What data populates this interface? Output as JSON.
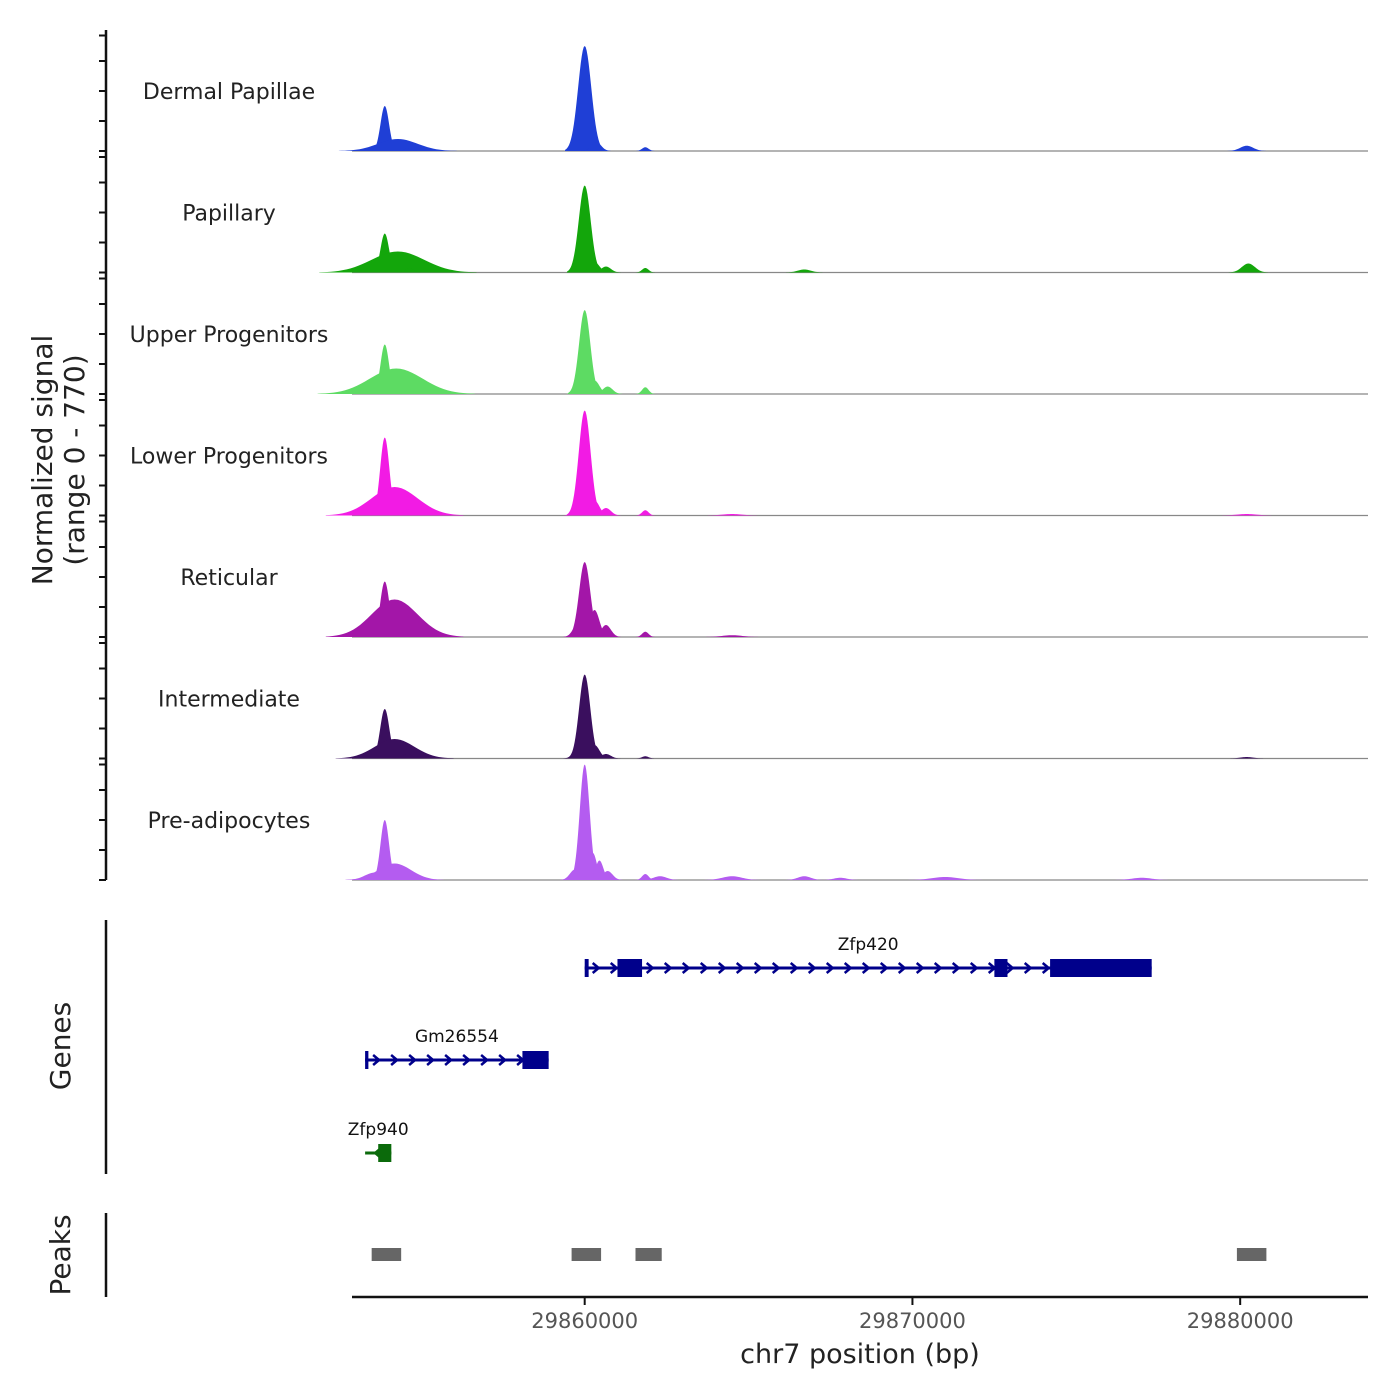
{
  "chart_data": {
    "type": "area",
    "title": "",
    "ylabel": "Normalized signal",
    "ylabel_range": "(range 0 - 770)",
    "ylim": [
      0,
      770
    ],
    "xlabel": "chr7 position (bp)",
    "xlim": [
      29852900,
      29883900
    ],
    "x_ticks": [
      29860000,
      29870000,
      29880000
    ],
    "x_tick_labels": [
      "29860000",
      "29870000",
      "29880000"
    ],
    "tracks": [
      {
        "name": "Dermal Papillae",
        "color": "#1f3fd6",
        "peaks": [
          [
            29853900,
            300,
            130
          ],
          [
            29854300,
            80,
            600
          ],
          [
            29854600,
            20,
            100
          ],
          [
            29859800,
            40,
            120
          ],
          [
            29860000,
            700,
            200
          ],
          [
            29860350,
            60,
            150
          ],
          [
            29861850,
            25,
            100
          ],
          [
            29880200,
            35,
            200
          ]
        ]
      },
      {
        "name": "Papillary",
        "color": "#13a60b",
        "peaks": [
          [
            29853900,
            260,
            130
          ],
          [
            29854300,
            140,
            800
          ],
          [
            29854650,
            30,
            120
          ],
          [
            29859800,
            50,
            120
          ],
          [
            29860000,
            580,
            180
          ],
          [
            29860300,
            70,
            150
          ],
          [
            29860650,
            40,
            150
          ],
          [
            29861850,
            30,
            100
          ],
          [
            29866700,
            20,
            200
          ],
          [
            29880250,
            60,
            200
          ]
        ]
      },
      {
        "name": "Upper Progenitors",
        "color": "#5ddb63",
        "peaks": [
          [
            29853900,
            330,
            130
          ],
          [
            29854250,
            170,
            800
          ],
          [
            29854650,
            30,
            120
          ],
          [
            29859800,
            50,
            120
          ],
          [
            29860000,
            560,
            170
          ],
          [
            29860300,
            90,
            150
          ],
          [
            29860700,
            50,
            150
          ],
          [
            29861850,
            45,
            100
          ]
        ]
      },
      {
        "name": "Lower Progenitors",
        "color": "#f21be4",
        "peaks": [
          [
            29853900,
            520,
            140
          ],
          [
            29854200,
            190,
            700
          ],
          [
            29854600,
            40,
            150
          ],
          [
            29859800,
            70,
            150
          ],
          [
            29860000,
            700,
            180
          ],
          [
            29860300,
            100,
            150
          ],
          [
            29860650,
            50,
            150
          ],
          [
            29861850,
            35,
            100
          ],
          [
            29864500,
            10,
            300
          ],
          [
            29880200,
            10,
            300
          ]
        ]
      },
      {
        "name": "Reticular",
        "color": "#a316a8",
        "peaks": [
          [
            29853900,
            370,
            140
          ],
          [
            29854200,
            250,
            700
          ],
          [
            29854600,
            50,
            150
          ],
          [
            29859800,
            90,
            150
          ],
          [
            29860000,
            500,
            170
          ],
          [
            29860300,
            180,
            150
          ],
          [
            29860650,
            80,
            150
          ],
          [
            29861850,
            35,
            100
          ],
          [
            29864500,
            12,
            300
          ]
        ]
      },
      {
        "name": "Intermediate",
        "color": "#3a0f5e",
        "peaks": [
          [
            29853900,
            330,
            140
          ],
          [
            29854200,
            130,
            600
          ],
          [
            29854600,
            30,
            150
          ],
          [
            29859800,
            60,
            150
          ],
          [
            29860000,
            560,
            170
          ],
          [
            29860300,
            90,
            150
          ],
          [
            29860650,
            30,
            150
          ],
          [
            29861850,
            15,
            100
          ],
          [
            29880200,
            10,
            200
          ]
        ]
      },
      {
        "name": "Pre-adipocytes",
        "color": "#b45cf0",
        "peaks": [
          [
            29853600,
            50,
            300
          ],
          [
            29853900,
            400,
            130
          ],
          [
            29854200,
            110,
            500
          ],
          [
            29859700,
            70,
            150
          ],
          [
            29860000,
            770,
            150
          ],
          [
            29860250,
            180,
            120
          ],
          [
            29860450,
            130,
            120
          ],
          [
            29860700,
            60,
            150
          ],
          [
            29861850,
            40,
            100
          ],
          [
            29862300,
            25,
            200
          ],
          [
            29864500,
            25,
            300
          ],
          [
            29866700,
            25,
            200
          ],
          [
            29867800,
            15,
            200
          ],
          [
            29871000,
            20,
            400
          ],
          [
            29877000,
            15,
            300
          ]
        ]
      }
    ],
    "genes_label": "Genes",
    "genes": [
      {
        "name": "Zfp420",
        "strand": "+",
        "start": 29860000,
        "end": 29877300,
        "color": "#00008b",
        "exons": [
          [
            29860000,
            29860120
          ],
          [
            29861000,
            29861750
          ],
          [
            29872500,
            29872900
          ],
          [
            29874200,
            29877300
          ]
        ]
      },
      {
        "name": "Gm26554",
        "strand": "+",
        "start": 29853300,
        "end": 29858900,
        "color": "#00008b",
        "exons": [
          [
            29853300,
            29853400
          ],
          [
            29858100,
            29858900
          ]
        ]
      },
      {
        "name": "Zfp940",
        "strand": "-",
        "start": 29853300,
        "end": 29854100,
        "color": "#0b6a0b",
        "exons": [
          [
            29853700,
            29854100
          ]
        ]
      }
    ],
    "peaks_label": "Peaks",
    "peak_regions": [
      [
        29853500,
        29854400
      ],
      [
        29859600,
        29860500
      ],
      [
        29861550,
        29862350
      ],
      [
        29879900,
        29880800
      ]
    ]
  }
}
